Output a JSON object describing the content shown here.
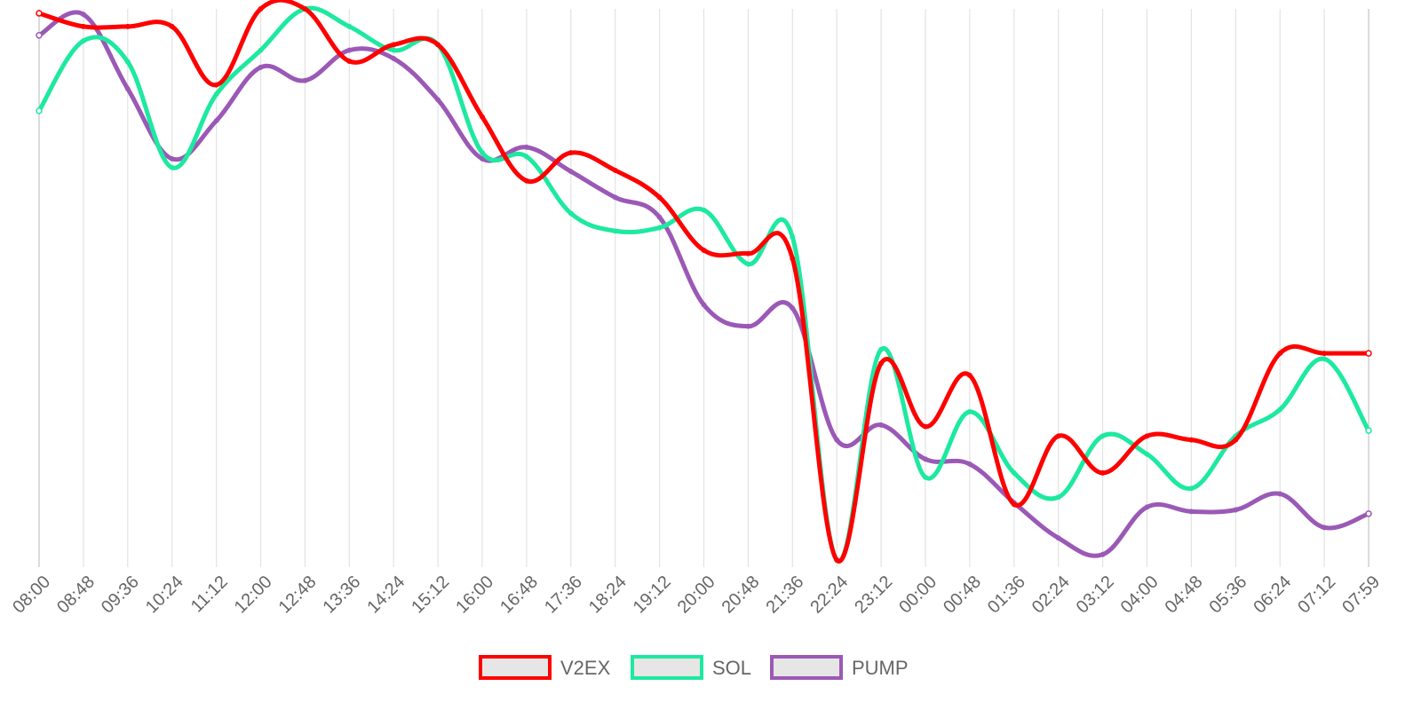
{
  "chart_data": {
    "type": "line",
    "title": "",
    "xlabel": "",
    "ylabel": "",
    "grid": "vertical",
    "legend_position": "bottom",
    "x": [
      "08:00",
      "08:48",
      "09:36",
      "10:24",
      "11:12",
      "12:00",
      "12:48",
      "13:36",
      "14:24",
      "15:12",
      "16:00",
      "16:48",
      "17:36",
      "18:24",
      "19:12",
      "20:00",
      "20:48",
      "21:36",
      "22:24",
      "23:12",
      "00:00",
      "00:48",
      "01:36",
      "02:24",
      "03:12",
      "04:00",
      "04:48",
      "05:36",
      "06:24",
      "07:12",
      "07:59"
    ],
    "ylim": [
      0,
      100
    ],
    "series": [
      {
        "name": "V2EX",
        "color": "#ff0000",
        "values": [
          99.2,
          96.8,
          96.8,
          96.8,
          86.2,
          100,
          100,
          90.5,
          93.5,
          93.5,
          80.4,
          68.8,
          73.9,
          70.7,
          65.8,
          56.2,
          55.6,
          54.7,
          0,
          35.7,
          24.2,
          33.5,
          10.1,
          22.5,
          15.8,
          22.5,
          21.8,
          21.8,
          37.5,
          37.5,
          37.5
        ]
      },
      {
        "name": "SOL",
        "color": "#1de9a0",
        "values": [
          81.5,
          94.2,
          90.4,
          71.2,
          84.5,
          92.5,
          100,
          96.8,
          92.5,
          93.5,
          73.9,
          73.2,
          62.9,
          59.7,
          60.3,
          63.5,
          53.7,
          58.6,
          0,
          38.2,
          15.0,
          26.9,
          15.8,
          11.4,
          22.5,
          19.2,
          13.0,
          22.5,
          27.3,
          36.5,
          23.5
        ]
      },
      {
        "name": "PUMP",
        "color": "#9b59b6",
        "values": [
          95.2,
          99.0,
          85.5,
          72.8,
          79.7,
          89.4,
          87.0,
          92.5,
          91.0,
          83.5,
          72.8,
          74.9,
          70.5,
          65.8,
          62.2,
          46.3,
          42.4,
          45.7,
          21.8,
          24.5,
          18.3,
          17.4,
          10.4,
          4.0,
          1.0,
          9.6,
          8.8,
          9.1,
          12.0,
          5.9,
          8.4
        ]
      }
    ]
  }
}
